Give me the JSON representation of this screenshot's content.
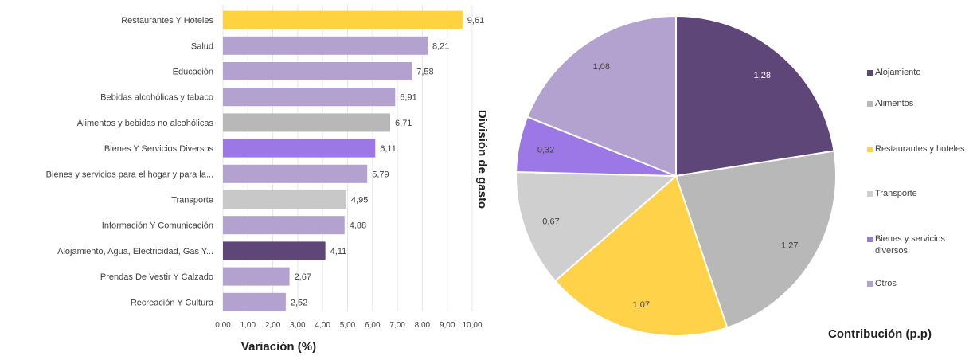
{
  "chart_data": [
    {
      "type": "bar",
      "orientation": "horizontal",
      "categories": [
        "Restaurantes Y Hoteles",
        "Salud",
        "Educación",
        "Bebidas alcohólicas y tabaco",
        "Alimentos y bebidas no alcohólicas",
        "Bienes Y Servicios Diversos",
        "Bienes y servicios para el hogar y para la...",
        "Transporte",
        "Información Y Comunicación",
        "Alojamiento, Agua, Electricidad, Gas Y...",
        "Prendas De Vestir Y Calzado",
        "Recreación Y Cultura"
      ],
      "values": [
        9.61,
        8.21,
        7.58,
        6.91,
        6.71,
        6.11,
        5.79,
        4.95,
        4.88,
        4.11,
        2.67,
        2.52
      ],
      "value_labels": [
        "9,61",
        "8,21",
        "7,58",
        "6,91",
        "6,71",
        "6,11",
        "5,79",
        "4,95",
        "4,88",
        "4,11",
        "2,67",
        "2,52"
      ],
      "colors": [
        "#FFD23F",
        "#B3A2D0",
        "#B3A2D0",
        "#B3A2D0",
        "#B8B8B8",
        "#9B78E6",
        "#B3A2D0",
        "#C8C8C8",
        "#B3A2D0",
        "#5E4679",
        "#B3A2D0",
        "#B3A2D0"
      ],
      "xlabel": "Variación (%)",
      "ylabel": "División de gasto",
      "xlim": [
        0,
        10
      ],
      "xticks": [
        "0,00",
        "1,00",
        "2,00",
        "3,00",
        "4,00",
        "5,00",
        "6,00",
        "7,00",
        "8,00",
        "9,00",
        "10,00"
      ],
      "grid": true
    },
    {
      "type": "pie",
      "title": "Contribución (p.p)",
      "slices": [
        {
          "label": "Alojamiento",
          "value": 1.28,
          "value_label": "1,28",
          "color": "#5E4679"
        },
        {
          "label": "Alimentos",
          "value": 1.27,
          "value_label": "1,27",
          "color": "#B8B8B8"
        },
        {
          "label": "Restaurantes y hoteles",
          "value": 1.07,
          "value_label": "1,07",
          "color": "#FFD24A"
        },
        {
          "label": "Transporte",
          "value": 0.67,
          "value_label": "0,67",
          "color": "#CFCFCF"
        },
        {
          "label": "Bienes y servicios diversos",
          "value": 0.32,
          "value_label": "0,32",
          "color": "#9B78E6"
        },
        {
          "label": "Otros",
          "value": 1.08,
          "value_label": "1,08",
          "color": "#B3A2D0"
        }
      ],
      "legend_position": "right"
    }
  ]
}
